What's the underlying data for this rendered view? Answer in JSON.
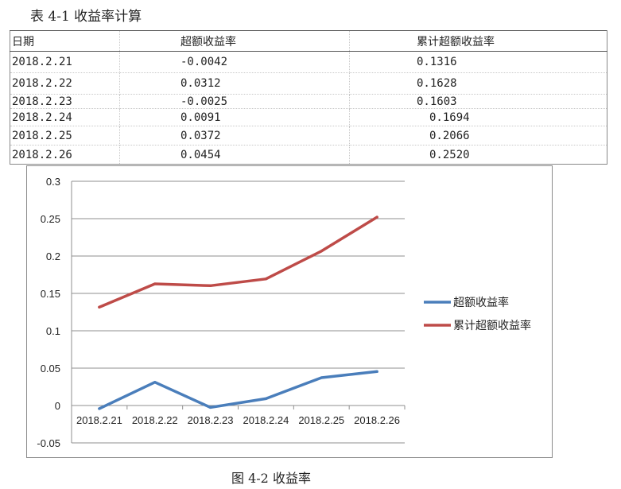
{
  "table": {
    "title": "表 4-1 收益率计算",
    "headers": [
      "日期",
      "超额收益率",
      "累计超额收益率"
    ],
    "rows": [
      {
        "date": "2018.2.21",
        "excess": "-0.0042",
        "cumulative": "0.1316"
      },
      {
        "date": "2018.2.22",
        "excess": "0.0312",
        "cumulative": "0.1628"
      },
      {
        "date": "2018.2.23",
        "excess": "-0.0025",
        "cumulative": "0.1603"
      },
      {
        "date": "2018.2.24",
        "excess": "0.0091",
        "cumulative": "0.1694"
      },
      {
        "date": "2018.2.25",
        "excess": "0.0372",
        "cumulative": "0.2066"
      },
      {
        "date": "2018.2.26",
        "excess": "0.0454",
        "cumulative": "0.2520"
      }
    ]
  },
  "chart_data": {
    "type": "line",
    "title": "",
    "xlabel": "",
    "ylabel": "",
    "categories": [
      "2018.2.21",
      "2018.2.22",
      "2018.2.23",
      "2018.2.24",
      "2018.2.25",
      "2018.2.26"
    ],
    "series": [
      {
        "name": "超额收益率",
        "color": "#4a7ebb",
        "values": [
          -0.0042,
          0.0312,
          -0.0025,
          0.0091,
          0.0372,
          0.0454
        ]
      },
      {
        "name": "累计超额收益率",
        "color": "#be4b48",
        "values": [
          0.1316,
          0.1628,
          0.1603,
          0.1694,
          0.2066,
          0.252
        ]
      }
    ],
    "ylim": [
      -0.05,
      0.3
    ],
    "yticks": [
      "0.3",
      "0.25",
      "0.2",
      "0.15",
      "0.1",
      "0.05",
      "0",
      "-0.05"
    ],
    "grid": true,
    "legend_position": "right"
  },
  "caption": "图 4-2 收益率"
}
